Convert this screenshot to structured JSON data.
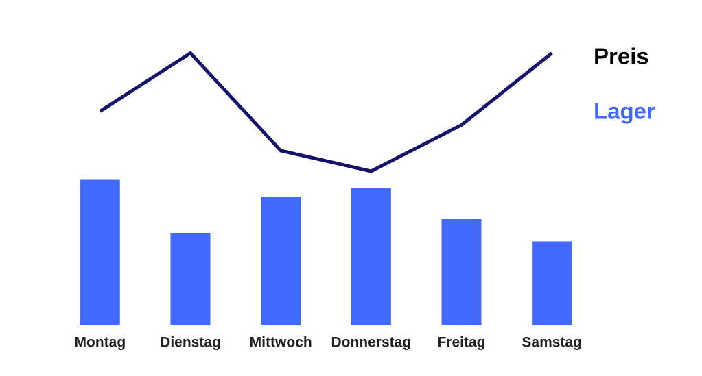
{
  "chart_data": {
    "type": "bar",
    "categories": [
      "Montag",
      "Dienstag",
      "Mittwoch",
      "Donnerstag",
      "Freitag",
      "Samstag"
    ],
    "series": [
      {
        "name": "Preis",
        "type": "line",
        "axis": "y2",
        "color": "#14146b",
        "values": [
          55,
          89,
          32,
          20,
          47,
          89
        ]
      },
      {
        "name": "Lager",
        "type": "bar",
        "color": "#4169fb",
        "values": [
          85,
          54,
          75,
          80,
          62,
          49
        ]
      }
    ],
    "ylim": [
      0,
      100
    ],
    "y2lim": [
      0,
      100
    ]
  }
}
